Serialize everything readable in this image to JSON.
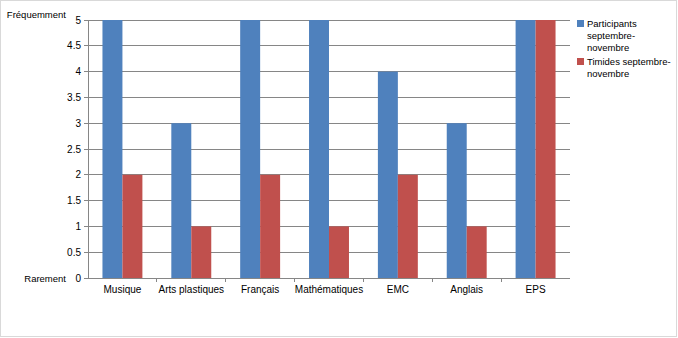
{
  "chart_data": {
    "type": "bar",
    "categories": [
      "Musique",
      "Arts plastiques",
      "Français",
      "Mathématiques",
      "EMC",
      "Anglais",
      "EPS"
    ],
    "series": [
      {
        "name": "Participants septembre-novembre",
        "color": "#4f81bd",
        "values": [
          5,
          3,
          5,
          5,
          4,
          3,
          5
        ]
      },
      {
        "name": "Timides septembre-novembre",
        "color": "#c0504d",
        "values": [
          2,
          1,
          2,
          1,
          2,
          1,
          5
        ]
      }
    ],
    "annotations": [
      "Fréquemment",
      "Rarement"
    ],
    "ylim": [
      0,
      5
    ],
    "yticks": [
      0,
      0.5,
      1,
      1.5,
      2,
      2.5,
      3,
      3.5,
      4,
      4.5,
      5
    ],
    "grid": true,
    "legend": "right"
  }
}
